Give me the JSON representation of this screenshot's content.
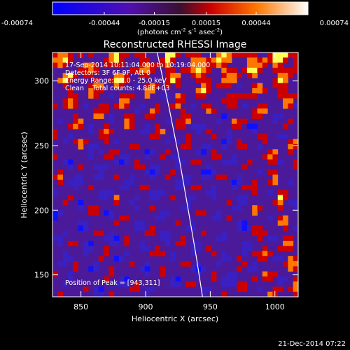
{
  "chart_data": {
    "type": "heatmap",
    "title": "Reconstructed RHESSI Image",
    "xlabel": "Heliocentric X (arcsec)",
    "ylabel": "Heliocentric Y (arcsec)",
    "xlim": [
      828,
      1018
    ],
    "ylim": [
      133,
      322
    ],
    "x_ticks": [
      850,
      900,
      950,
      1000
    ],
    "y_ticks": [
      150,
      200,
      250,
      300
    ],
    "colorbar": {
      "min": -0.00074,
      "max": 0.00074,
      "ticks": [
        "-0.00074",
        "-0.00044",
        "-0.00015",
        "0.00015",
        "0.00044",
        "0.00074"
      ],
      "tick_values": [
        -0.00074,
        -0.00044,
        -0.00015,
        0.00015,
        0.00044,
        0.00074
      ],
      "unit_label": "(photons cm",
      "unit_sup1": "-2",
      "unit_mid": " s",
      "unit_sup2": "-1",
      "unit_end": " asec",
      "unit_sup3": "-2",
      "unit_close": ")"
    },
    "annotations": {
      "time_range": "17-Sep-2014 10:11:04.000 to 10:19:04.000",
      "detectors": "Detectors: 3F 6F 9F, Att 0",
      "energy_range": "Energy Range: 12.0 - 25.0 keV",
      "method_counts": "Clean    Total counts: 4.88E+03",
      "peak": "Position of Peak = [943,311]"
    },
    "limb_curve": {
      "x": [
        909,
        918,
        926,
        933,
        939,
        944
      ],
      "y": [
        322,
        280,
        240,
        200,
        165,
        133
      ]
    },
    "colors": {
      "negative": "#1010ff",
      "zero": "#4a1a9a",
      "positive_low": "#cc0000",
      "positive_mid": "#ff7700",
      "positive_high": "#ffff55"
    }
  },
  "footer": {
    "timestamp": "21-Dec-2014 07:22"
  }
}
